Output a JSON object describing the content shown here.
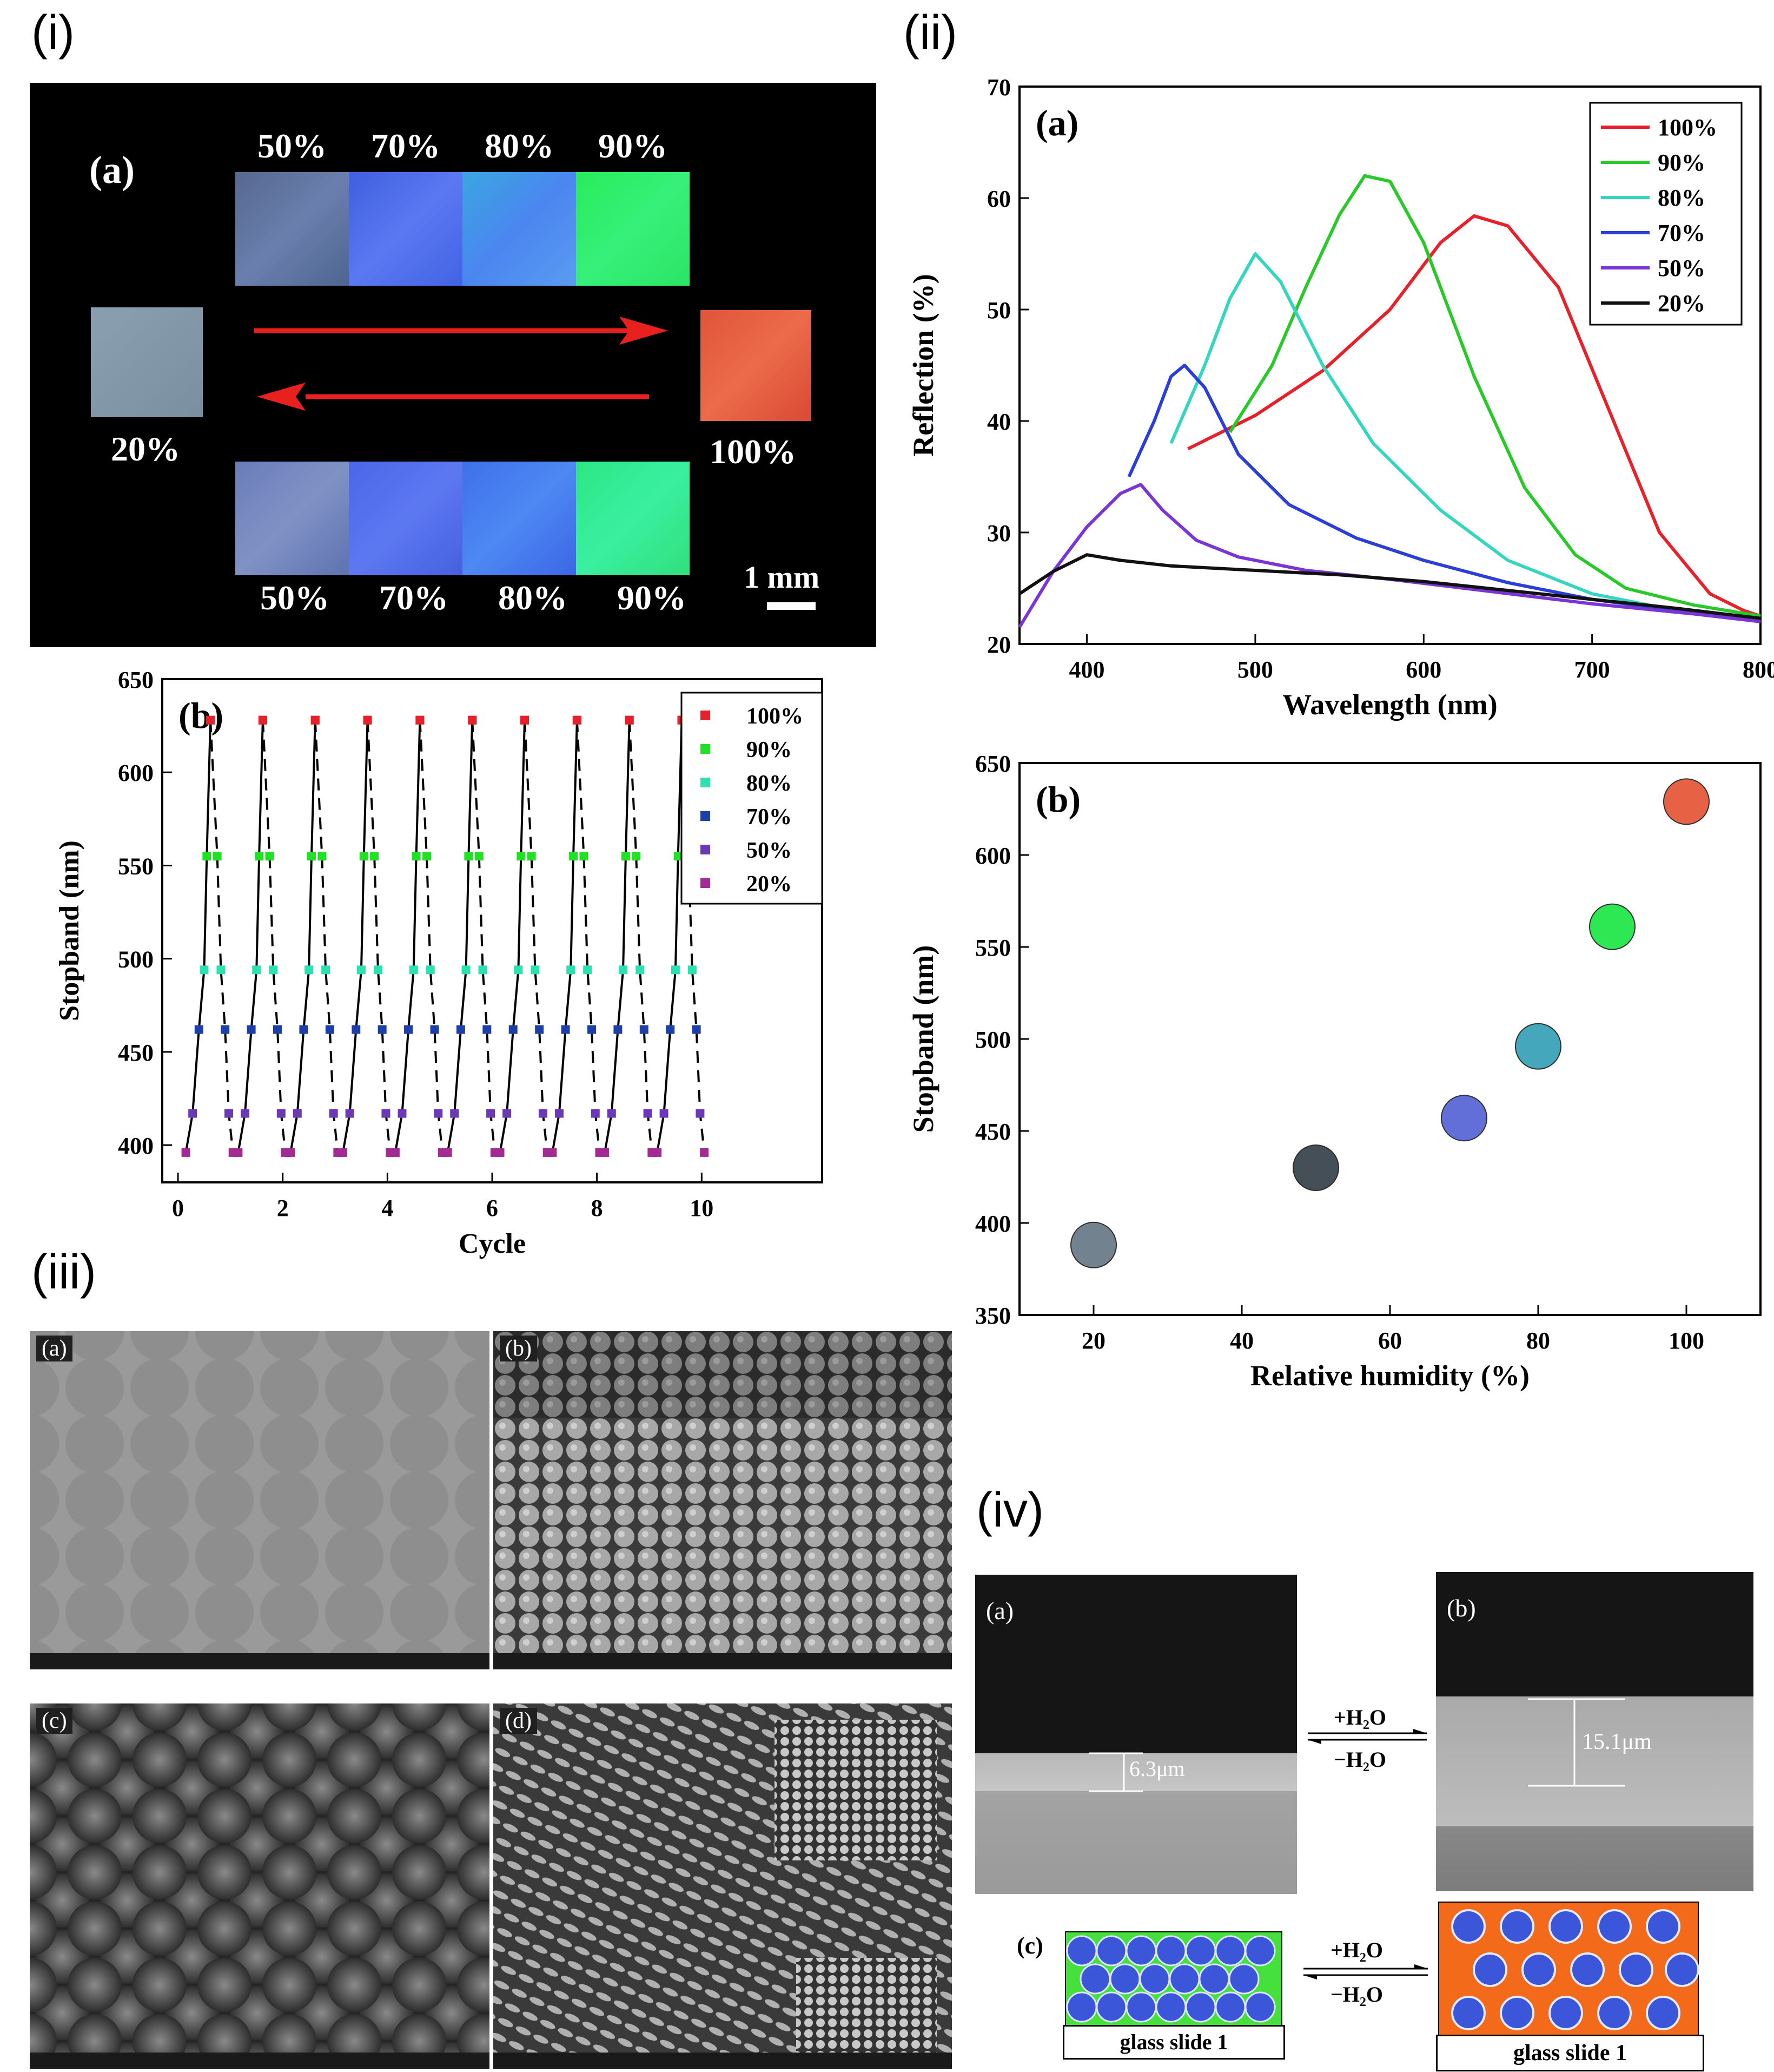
{
  "panel_labels": {
    "i": "(i)",
    "ii": "(ii)",
    "iii": "(iii)",
    "iv": "(iv)"
  },
  "panel_i_a": {
    "label": "(a)",
    "top_labels": [
      "50%",
      "70%",
      "80%",
      "90%"
    ],
    "bottom_labels": [
      "50%",
      "70%",
      "80%",
      "90%"
    ],
    "left_label": "20%",
    "right_label": "100%",
    "scale": "1 mm",
    "colors": {
      "c50": "#5a6f9a",
      "c70": "#4a6de8",
      "c80": "#4b8df0",
      "c90": "#2ff06a",
      "c20": "#7f93a3",
      "c100": "#e5583e",
      "arrow": "#e8201e"
    }
  },
  "chart_data": [
    {
      "id": "i-b",
      "type": "scatter",
      "label": "(b)",
      "xlabel": "Cycle",
      "ylabel": "Stopband (nm)",
      "xlim": [
        -0.3,
        12.3
      ],
      "ylim": [
        380,
        650
      ],
      "xticks": [
        0,
        2,
        4,
        6,
        8,
        10
      ],
      "yticks": [
        400,
        450,
        500,
        550,
        600,
        650
      ],
      "legend": [
        {
          "name": "100%",
          "color": "#e8202a"
        },
        {
          "name": "90%",
          "color": "#21e027"
        },
        {
          "name": "80%",
          "color": "#2de0b0"
        },
        {
          "name": "70%",
          "color": "#1d3fa8"
        },
        {
          "name": "50%",
          "color": "#6b38b8"
        },
        {
          "name": "20%",
          "color": "#a32a94"
        }
      ],
      "cycle_values": {
        "20%": 396,
        "50%": 417,
        "70%": 462,
        "80%": 494,
        "90%": 555,
        "100%": 628
      }
    },
    {
      "id": "ii-a",
      "type": "line",
      "label": "(a)",
      "xlabel": "Wavelength (nm)",
      "ylabel": "Reflection (%)",
      "xlim": [
        360,
        800
      ],
      "ylim": [
        20,
        70
      ],
      "xticks": [
        400,
        500,
        600,
        700,
        800
      ],
      "yticks": [
        20,
        30,
        40,
        50,
        60,
        70
      ],
      "series": [
        {
          "name": "100%",
          "color": "#e8202a",
          "x": [
            460,
            500,
            540,
            580,
            610,
            630,
            650,
            680,
            710,
            740,
            770,
            790,
            800
          ],
          "y": [
            37.5,
            40.5,
            44.5,
            50,
            56,
            58.4,
            57.5,
            52,
            41,
            30,
            24.5,
            23,
            22.5
          ]
        },
        {
          "name": "90%",
          "color": "#2ac92a",
          "x": [
            485,
            510,
            530,
            550,
            565,
            580,
            600,
            630,
            660,
            690,
            720,
            760,
            800
          ],
          "y": [
            39,
            45,
            52,
            58.5,
            62,
            61.5,
            56,
            44,
            34,
            28,
            25,
            23.5,
            22.5
          ]
        },
        {
          "name": "80%",
          "color": "#34d6c0",
          "x": [
            450,
            470,
            485,
            500,
            515,
            540,
            570,
            610,
            650,
            700,
            750,
            800
          ],
          "y": [
            38,
            45,
            51,
            55,
            52.5,
            45,
            38,
            32,
            27.5,
            24.5,
            23,
            22
          ]
        },
        {
          "name": "70%",
          "color": "#2a3ed9",
          "x": [
            425,
            440,
            450,
            458,
            470,
            490,
            520,
            560,
            600,
            650,
            700,
            750,
            800
          ],
          "y": [
            35,
            40,
            44,
            45,
            43,
            37,
            32.5,
            29.5,
            27.5,
            25.5,
            24,
            23,
            22
          ]
        },
        {
          "name": "50%",
          "color": "#7b35d6",
          "x": [
            360,
            380,
            400,
            420,
            432,
            445,
            465,
            490,
            530,
            580,
            640,
            700,
            760,
            800
          ],
          "y": [
            21.5,
            26.5,
            30.5,
            33.5,
            34.3,
            32,
            29.3,
            27.8,
            26.6,
            25.8,
            24.7,
            23.6,
            22.7,
            22
          ]
        },
        {
          "name": "20%",
          "color": "#111111",
          "x": [
            360,
            380,
            400,
            420,
            450,
            500,
            550,
            600,
            650,
            700,
            750,
            800
          ],
          "y": [
            24.5,
            26.5,
            28,
            27.5,
            27,
            26.6,
            26.2,
            25.6,
            24.8,
            24,
            23.2,
            22.3
          ]
        }
      ]
    },
    {
      "id": "ii-b",
      "type": "scatter",
      "label": "(b)",
      "xlabel": "Relative humidity (%)",
      "ylabel": "Stopband (nm)",
      "xlim": [
        10,
        110
      ],
      "ylim": [
        350,
        650
      ],
      "xticks": [
        20,
        40,
        60,
        80,
        100
      ],
      "yticks": [
        350,
        400,
        450,
        500,
        550,
        600,
        650
      ],
      "points": [
        {
          "x": 20,
          "y": 388,
          "color": "#6b7c88"
        },
        {
          "x": 50,
          "y": 430,
          "color": "#3b4650"
        },
        {
          "x": 70,
          "y": 457,
          "color": "#5b68d8"
        },
        {
          "x": 80,
          "y": 496,
          "color": "#3aa3b8"
        },
        {
          "x": 90,
          "y": 561,
          "color": "#22e64a"
        },
        {
          "x": 100,
          "y": 629,
          "color": "#e65a3a"
        }
      ]
    }
  ],
  "panel_iii": {
    "labels": [
      "(a)",
      "(b)",
      "(c)",
      "(d)"
    ]
  },
  "panel_iv": {
    "a_label": "(a)",
    "b_label": "(b)",
    "c_label": "(c)",
    "thickness_a": "6.3μm",
    "thickness_b": "15.1μm",
    "plus_water": "+H₂O",
    "minus_water": "−H₂O",
    "glass_label": "glass slide 1",
    "colors": {
      "green": "#45e03c",
      "orange": "#f26a1a",
      "sphere": "#3b56d8"
    }
  }
}
